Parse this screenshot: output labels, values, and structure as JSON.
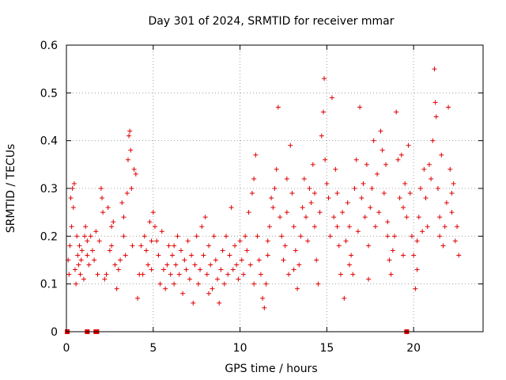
{
  "chart_data": {
    "type": "scatter",
    "title": "Day 301 of 2024, SRMTID for receiver mmar",
    "xlabel": "GPS time / hours",
    "ylabel": "SRMTID / TECUs",
    "xlim": [
      0,
      24
    ],
    "ylim": [
      0,
      0.6
    ],
    "xticks": [
      0,
      5,
      10,
      15,
      20
    ],
    "xtick_labels": [
      "0",
      "5",
      "10",
      "15",
      "20"
    ],
    "yticks": [
      0,
      0.1,
      0.2,
      0.3,
      0.4,
      0.5,
      0.6
    ],
    "ytick_labels": [
      "0",
      "0.1",
      "0.2",
      "0.3",
      "0.4",
      "0.5",
      "0.6"
    ],
    "grid": true,
    "marker": "+",
    "color": "#e00000",
    "series": [
      {
        "name": "SRMTID",
        "points": [
          [
            0.1,
            0.15
          ],
          [
            0.15,
            0.12
          ],
          [
            0.2,
            0.18
          ],
          [
            0.25,
            0.28
          ],
          [
            0.3,
            0.22
          ],
          [
            0.35,
            0.3
          ],
          [
            0.4,
            0.26
          ],
          [
            0.45,
            0.31
          ],
          [
            0.5,
            0.13
          ],
          [
            0.55,
            0.1
          ],
          [
            0.6,
            0.2
          ],
          [
            0.65,
            0.16
          ],
          [
            0.7,
            0.14
          ],
          [
            0.75,
            0.18
          ],
          [
            0.8,
            0.12
          ],
          [
            0.85,
            0.15
          ],
          [
            0.9,
            0.17
          ],
          [
            1.0,
            0.11
          ],
          [
            1.05,
            0.2
          ],
          [
            1.1,
            0.22
          ],
          [
            1.2,
            0.19
          ],
          [
            1.3,
            0.14
          ],
          [
            1.4,
            0.2
          ],
          [
            1.5,
            0.17
          ],
          [
            1.6,
            0.15
          ],
          [
            1.7,
            0.21
          ],
          [
            1.8,
            0.12
          ],
          [
            1.9,
            0.19
          ],
          [
            2.0,
            0.3
          ],
          [
            2.05,
            0.28
          ],
          [
            2.1,
            0.25
          ],
          [
            2.2,
            0.11
          ],
          [
            2.3,
            0.12
          ],
          [
            2.4,
            0.26
          ],
          [
            2.5,
            0.17
          ],
          [
            2.6,
            0.22
          ],
          [
            2.7,
            0.23
          ],
          [
            2.8,
            0.14
          ],
          [
            2.9,
            0.09
          ],
          [
            3.0,
            0.13
          ],
          [
            3.1,
            0.15
          ],
          [
            3.2,
            0.27
          ],
          [
            3.3,
            0.2
          ],
          [
            3.4,
            0.16
          ],
          [
            3.5,
            0.29
          ],
          [
            3.55,
            0.36
          ],
          [
            3.6,
            0.41
          ],
          [
            3.65,
            0.42
          ],
          [
            3.7,
            0.38
          ],
          [
            3.75,
            0.3
          ],
          [
            3.8,
            0.18
          ],
          [
            3.9,
            0.34
          ],
          [
            4.0,
            0.33
          ],
          [
            4.1,
            0.07
          ],
          [
            4.2,
            0.12
          ],
          [
            4.3,
            0.18
          ],
          [
            4.4,
            0.12
          ],
          [
            4.5,
            0.2
          ],
          [
            4.6,
            0.17
          ],
          [
            4.7,
            0.14
          ],
          [
            4.8,
            0.23
          ],
          [
            4.9,
            0.19
          ],
          [
            5.0,
            0.25
          ],
          [
            5.1,
            0.22
          ],
          [
            5.2,
            0.19
          ],
          [
            5.3,
            0.16
          ],
          [
            5.4,
            0.1
          ],
          [
            5.5,
            0.21
          ],
          [
            5.6,
            0.13
          ],
          [
            5.7,
            0.09
          ],
          [
            5.8,
            0.14
          ],
          [
            5.9,
            0.18
          ],
          [
            6.0,
            0.12
          ],
          [
            6.1,
            0.16
          ],
          [
            6.2,
            0.1
          ],
          [
            6.3,
            0.14
          ],
          [
            6.4,
            0.2
          ],
          [
            6.5,
            0.12
          ],
          [
            6.6,
            0.17
          ],
          [
            6.7,
            0.08
          ],
          [
            6.8,
            0.15
          ],
          [
            6.9,
            0.13
          ],
          [
            7.0,
            0.19
          ],
          [
            7.1,
            0.11
          ],
          [
            7.2,
            0.16
          ],
          [
            7.3,
            0.06
          ],
          [
            7.4,
            0.14
          ],
          [
            7.5,
            0.2
          ],
          [
            7.6,
            0.1
          ],
          [
            7.7,
            0.13
          ],
          [
            7.8,
            0.22
          ],
          [
            7.9,
            0.16
          ],
          [
            8.0,
            0.24
          ],
          [
            8.1,
            0.12
          ],
          [
            8.2,
            0.18
          ],
          [
            8.3,
            0.14
          ],
          [
            8.4,
            0.09
          ],
          [
            8.5,
            0.2
          ],
          [
            8.6,
            0.15
          ],
          [
            8.7,
            0.11
          ],
          [
            8.8,
            0.06
          ],
          [
            8.9,
            0.13
          ],
          [
            9.0,
            0.17
          ],
          [
            9.1,
            0.1
          ],
          [
            9.2,
            0.2
          ],
          [
            9.3,
            0.12
          ],
          [
            9.4,
            0.16
          ],
          [
            9.5,
            0.26
          ],
          [
            9.6,
            0.13
          ],
          [
            9.7,
            0.18
          ],
          [
            9.8,
            0.14
          ],
          [
            9.9,
            0.11
          ],
          [
            10.0,
            0.19
          ],
          [
            10.1,
            0.15
          ],
          [
            10.2,
            0.12
          ],
          [
            10.3,
            0.2
          ],
          [
            10.4,
            0.17
          ],
          [
            10.5,
            0.25
          ],
          [
            10.6,
            0.14
          ],
          [
            10.7,
            0.29
          ],
          [
            10.8,
            0.32
          ],
          [
            10.9,
            0.37
          ],
          [
            11.0,
            0.2
          ],
          [
            11.1,
            0.15
          ],
          [
            11.2,
            0.12
          ],
          [
            11.3,
            0.07
          ],
          [
            11.4,
            0.05
          ],
          [
            11.5,
            0.1
          ],
          [
            11.6,
            0.16
          ],
          [
            11.7,
            0.22
          ],
          [
            11.8,
            0.28
          ],
          [
            11.9,
            0.26
          ],
          [
            12.0,
            0.3
          ],
          [
            12.1,
            0.34
          ],
          [
            12.2,
            0.47
          ],
          [
            12.3,
            0.24
          ],
          [
            12.4,
            0.2
          ],
          [
            12.5,
            0.15
          ],
          [
            12.6,
            0.18
          ],
          [
            12.7,
            0.25
          ],
          [
            12.8,
            0.12
          ],
          [
            12.9,
            0.39
          ],
          [
            13.0,
            0.29
          ],
          [
            13.1,
            0.22
          ],
          [
            13.2,
            0.17
          ],
          [
            13.3,
            0.09
          ],
          [
            13.4,
            0.14
          ],
          [
            13.5,
            0.2
          ],
          [
            13.6,
            0.26
          ],
          [
            13.7,
            0.32
          ],
          [
            13.8,
            0.24
          ],
          [
            13.9,
            0.19
          ],
          [
            14.0,
            0.3
          ],
          [
            14.1,
            0.27
          ],
          [
            14.2,
            0.35
          ],
          [
            14.3,
            0.22
          ],
          [
            14.4,
            0.15
          ],
          [
            14.5,
            0.1
          ],
          [
            14.6,
            0.25
          ],
          [
            14.7,
            0.41
          ],
          [
            14.8,
            0.46
          ],
          [
            14.85,
            0.53
          ],
          [
            14.9,
            0.36
          ],
          [
            15.0,
            0.31
          ],
          [
            15.1,
            0.28
          ],
          [
            15.2,
            0.2
          ],
          [
            15.3,
            0.49
          ],
          [
            15.4,
            0.24
          ],
          [
            15.5,
            0.34
          ],
          [
            15.6,
            0.29
          ],
          [
            15.7,
            0.18
          ],
          [
            15.8,
            0.12
          ],
          [
            15.9,
            0.25
          ],
          [
            16.0,
            0.07
          ],
          [
            16.1,
            0.19
          ],
          [
            16.2,
            0.27
          ],
          [
            16.3,
            0.22
          ],
          [
            16.4,
            0.16
          ],
          [
            16.5,
            0.12
          ],
          [
            16.6,
            0.3
          ],
          [
            16.7,
            0.36
          ],
          [
            16.8,
            0.21
          ],
          [
            16.9,
            0.47
          ],
          [
            17.0,
            0.28
          ],
          [
            17.1,
            0.31
          ],
          [
            17.2,
            0.24
          ],
          [
            17.3,
            0.35
          ],
          [
            17.4,
            0.18
          ],
          [
            17.5,
            0.26
          ],
          [
            17.6,
            0.3
          ],
          [
            17.7,
            0.4
          ],
          [
            17.8,
            0.22
          ],
          [
            17.9,
            0.33
          ],
          [
            18.0,
            0.25
          ],
          [
            18.1,
            0.42
          ],
          [
            18.2,
            0.38
          ],
          [
            18.3,
            0.29
          ],
          [
            18.4,
            0.35
          ],
          [
            18.5,
            0.2
          ],
          [
            18.6,
            0.15
          ],
          [
            18.7,
            0.12
          ],
          [
            18.8,
            0.17
          ],
          [
            18.9,
            0.2
          ],
          [
            19.0,
            0.46
          ],
          [
            19.1,
            0.36
          ],
          [
            19.2,
            0.28
          ],
          [
            19.3,
            0.37
          ],
          [
            19.4,
            0.26
          ],
          [
            19.5,
            0.31
          ],
          [
            19.6,
            0.24
          ],
          [
            19.7,
            0.39
          ],
          [
            19.8,
            0.29
          ],
          [
            19.9,
            0.2
          ],
          [
            20.0,
            0.16
          ],
          [
            20.1,
            0.09
          ],
          [
            20.2,
            0.13
          ],
          [
            20.3,
            0.24
          ],
          [
            20.4,
            0.3
          ],
          [
            20.5,
            0.21
          ],
          [
            20.6,
            0.34
          ],
          [
            20.7,
            0.28
          ],
          [
            20.8,
            0.22
          ],
          [
            20.9,
            0.35
          ],
          [
            21.0,
            0.32
          ],
          [
            21.1,
            0.4
          ],
          [
            21.2,
            0.55
          ],
          [
            21.25,
            0.48
          ],
          [
            21.3,
            0.45
          ],
          [
            21.4,
            0.3
          ],
          [
            21.5,
            0.24
          ],
          [
            21.6,
            0.37
          ],
          [
            21.7,
            0.18
          ],
          [
            21.8,
            0.22
          ],
          [
            21.9,
            0.27
          ],
          [
            22.0,
            0.47
          ],
          [
            22.1,
            0.34
          ],
          [
            22.2,
            0.25
          ],
          [
            22.3,
            0.31
          ],
          [
            22.4,
            0.19
          ],
          [
            22.5,
            0.22
          ],
          [
            22.6,
            0.16
          ],
          [
            16.3,
            0.14
          ],
          [
            17.4,
            0.11
          ],
          [
            13.1,
            0.13
          ],
          [
            10.8,
            0.1
          ],
          [
            8.2,
            0.08
          ],
          [
            6.2,
            0.18
          ],
          [
            4.9,
            0.13
          ],
          [
            3.3,
            0.24
          ],
          [
            2.6,
            0.18
          ],
          [
            1.2,
            0.16
          ],
          [
            18.5,
            0.23
          ],
          [
            19.4,
            0.16
          ],
          [
            20.2,
            0.19
          ],
          [
            21.5,
            0.2
          ],
          [
            22.2,
            0.29
          ],
          [
            15.6,
            0.22
          ],
          [
            14.3,
            0.29
          ],
          [
            12.7,
            0.32
          ],
          [
            11.6,
            0.19
          ]
        ],
        "zero_points": [
          0.05,
          1.2,
          1.7,
          1.75,
          19.6
        ]
      }
    ]
  }
}
